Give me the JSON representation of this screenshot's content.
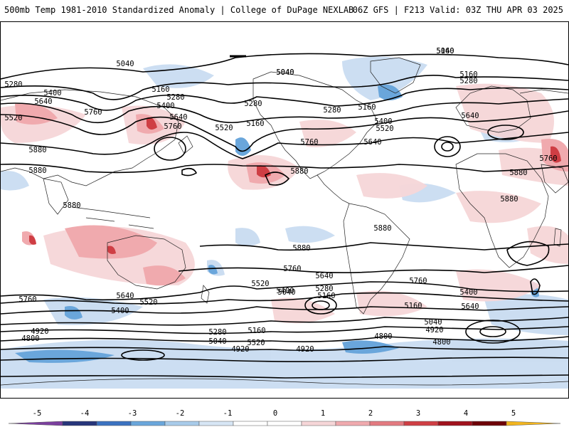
{
  "header": {
    "title": "500mb Temp 1981-2010 Standardized Anomaly | College of DuPage NEXLAB",
    "run_info": "06Z GFS | F213 Valid: 03Z THU APR 03 2025"
  },
  "map": {
    "contour_color": "#000000",
    "contour_labels": [
      "5040",
      "5040",
      "5160",
      "5280",
      "5400",
      "5640",
      "5520",
      "5760",
      "5880",
      "5880",
      "5160",
      "5280",
      "5400",
      "5640",
      "5760",
      "5520",
      "5760",
      "5880",
      "5880",
      "5280",
      "5160",
      "5400",
      "5520",
      "5640",
      "5280",
      "5160",
      "5040",
      "5040",
      "5160",
      "5280",
      "5640",
      "5760",
      "5880",
      "5880",
      "5880",
      "5880",
      "5760",
      "5640",
      "5520",
      "5400",
      "5280",
      "5160",
      "5040",
      "4920",
      "4800",
      "5760",
      "5640",
      "5520",
      "5400",
      "5280",
      "5160",
      "5040",
      "4920",
      "4800",
      "4920",
      "5520",
      "5640",
      "5760",
      "5400",
      "5160",
      "5040",
      "4920",
      "4800"
    ]
  },
  "colorbar": {
    "ticks": [
      "-5",
      "-4",
      "-3",
      "-2",
      "-1",
      "0",
      "1",
      "2",
      "3",
      "4",
      "5"
    ],
    "colors": [
      "#7b3f9e",
      "#26357a",
      "#3b72c0",
      "#6aa6db",
      "#a8cbea",
      "#d7e6f5",
      "#ffffff",
      "#ffffff",
      "#f6d6d8",
      "#f0aaae",
      "#e37a80",
      "#cf3e44",
      "#a0121c",
      "#6e0008",
      "#f2b51f"
    ]
  }
}
